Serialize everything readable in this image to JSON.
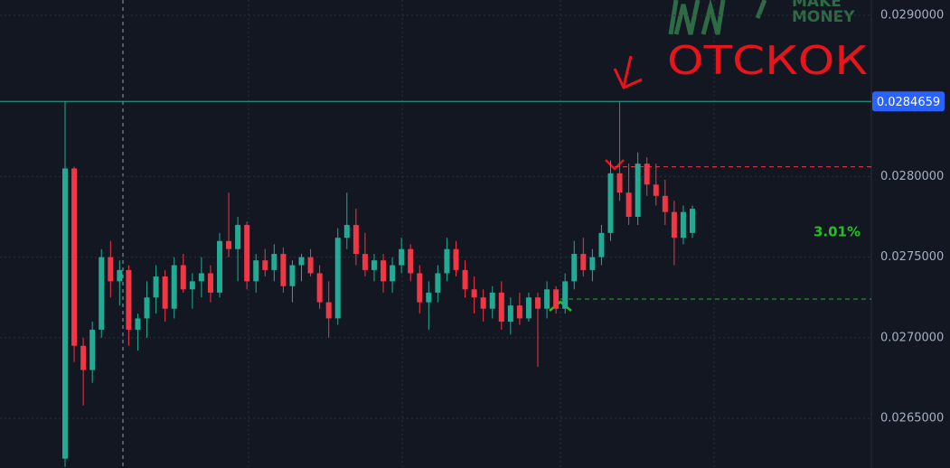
{
  "chart_data": {
    "type": "candlestick",
    "watermark": [
      "MAKE",
      "MONEY"
    ],
    "annotation": "ОТСКОК",
    "percent_label": "3.01%",
    "current_price": 0.0284659,
    "levels": [
      {
        "color": "#f23645",
        "value": 0.02806
      },
      {
        "color": "#22ab22",
        "value": 0.02724
      }
    ],
    "up_color": "#22ab94",
    "down_color": "#f23645",
    "ylim": [
      0.026192,
      0.029095
    ],
    "yticks": [
      {
        "value": 0.0265,
        "label": "0.0265000"
      },
      {
        "value": 0.027,
        "label": "0.0270000"
      },
      {
        "value": 0.0275,
        "label": "0.0275000"
      },
      {
        "value": 0.028,
        "label": "0.0280000"
      },
      {
        "value": 0.029,
        "label": "0.0290000"
      }
    ],
    "grid": true,
    "open": [
      0.02625,
      0.02805,
      0.02695,
      0.0268,
      0.02705,
      0.0275,
      0.02735,
      0.02742,
      0.02705,
      0.02712,
      0.02725,
      0.02738,
      0.02718,
      0.02745,
      0.0273,
      0.02735,
      0.0274,
      0.02728,
      0.0276,
      0.02755,
      0.0277,
      0.02735,
      0.02748,
      0.02742,
      0.02752,
      0.02732,
      0.02745,
      0.0275,
      0.0274,
      0.02722,
      0.02712,
      0.02762,
      0.0277,
      0.02752,
      0.02742,
      0.02748,
      0.02735,
      0.02745,
      0.02755,
      0.0274,
      0.02722,
      0.02728,
      0.0274,
      0.02755,
      0.02742,
      0.0273,
      0.02725,
      0.02718,
      0.02728,
      0.0271,
      0.0272,
      0.02712,
      0.02725,
      0.02718,
      0.0273,
      0.02718,
      0.02735,
      0.02752,
      0.02742,
      0.0275,
      0.02765,
      0.02802,
      0.0279,
      0.02775,
      0.02808,
      0.02795,
      0.02788,
      0.02778,
      0.02762,
      0.02765
    ],
    "high": [
      0.0284659,
      0.02806,
      0.027,
      0.0271,
      0.02755,
      0.0276,
      0.02748,
      0.02745,
      0.02715,
      0.02735,
      0.02745,
      0.02742,
      0.0275,
      0.02752,
      0.0274,
      0.0275,
      0.02745,
      0.02765,
      0.0279,
      0.02775,
      0.02772,
      0.02752,
      0.02755,
      0.02758,
      0.02756,
      0.02748,
      0.02752,
      0.02755,
      0.02745,
      0.02735,
      0.02768,
      0.0279,
      0.0278,
      0.02765,
      0.02752,
      0.02752,
      0.0275,
      0.02762,
      0.02758,
      0.02745,
      0.02735,
      0.02745,
      0.02762,
      0.0276,
      0.02748,
      0.02738,
      0.0273,
      0.02732,
      0.02735,
      0.02725,
      0.02728,
      0.02728,
      0.02728,
      0.02735,
      0.02732,
      0.0274,
      0.0276,
      0.02762,
      0.02755,
      0.0277,
      0.0281,
      0.0284659,
      0.02808,
      0.02815,
      0.02812,
      0.02808,
      0.02798,
      0.02785,
      0.02782,
      0.02782
    ],
    "low": [
      0.0262,
      0.02685,
      0.02658,
      0.02672,
      0.027,
      0.02725,
      0.0272,
      0.02695,
      0.02692,
      0.027,
      0.02715,
      0.0271,
      0.02712,
      0.02728,
      0.02718,
      0.02725,
      0.02722,
      0.02725,
      0.0275,
      0.02735,
      0.0273,
      0.02728,
      0.02738,
      0.02735,
      0.02728,
      0.02722,
      0.02735,
      0.02738,
      0.02718,
      0.027,
      0.02708,
      0.02755,
      0.02745,
      0.02738,
      0.02735,
      0.02728,
      0.02728,
      0.0274,
      0.02735,
      0.02715,
      0.02705,
      0.02722,
      0.02735,
      0.02738,
      0.02725,
      0.02715,
      0.0271,
      0.02712,
      0.02705,
      0.02702,
      0.02708,
      0.0271,
      0.02682,
      0.02712,
      0.02715,
      0.02715,
      0.0273,
      0.02738,
      0.02735,
      0.02745,
      0.0276,
      0.02785,
      0.0277,
      0.0277,
      0.02788,
      0.02782,
      0.0277,
      0.02745,
      0.02758,
      0.02762
    ],
    "close": [
      0.02805,
      0.02695,
      0.0268,
      0.02705,
      0.0275,
      0.02735,
      0.02742,
      0.02705,
      0.02712,
      0.02725,
      0.02738,
      0.02718,
      0.02745,
      0.0273,
      0.02735,
      0.0274,
      0.02728,
      0.0276,
      0.02755,
      0.0277,
      0.02735,
      0.02748,
      0.02742,
      0.02752,
      0.02732,
      0.02745,
      0.0275,
      0.0274,
      0.02722,
      0.02712,
      0.02762,
      0.0277,
      0.02752,
      0.02742,
      0.02748,
      0.02735,
      0.02745,
      0.02755,
      0.0274,
      0.02722,
      0.02728,
      0.0274,
      0.02755,
      0.02742,
      0.0273,
      0.02725,
      0.02718,
      0.02728,
      0.0271,
      0.0272,
      0.02712,
      0.02725,
      0.02718,
      0.0273,
      0.02718,
      0.02735,
      0.02752,
      0.02742,
      0.0275,
      0.02765,
      0.02802,
      0.0279,
      0.02775,
      0.02808,
      0.02795,
      0.02788,
      0.02778,
      0.02762,
      0.02778,
      0.0278
    ]
  }
}
